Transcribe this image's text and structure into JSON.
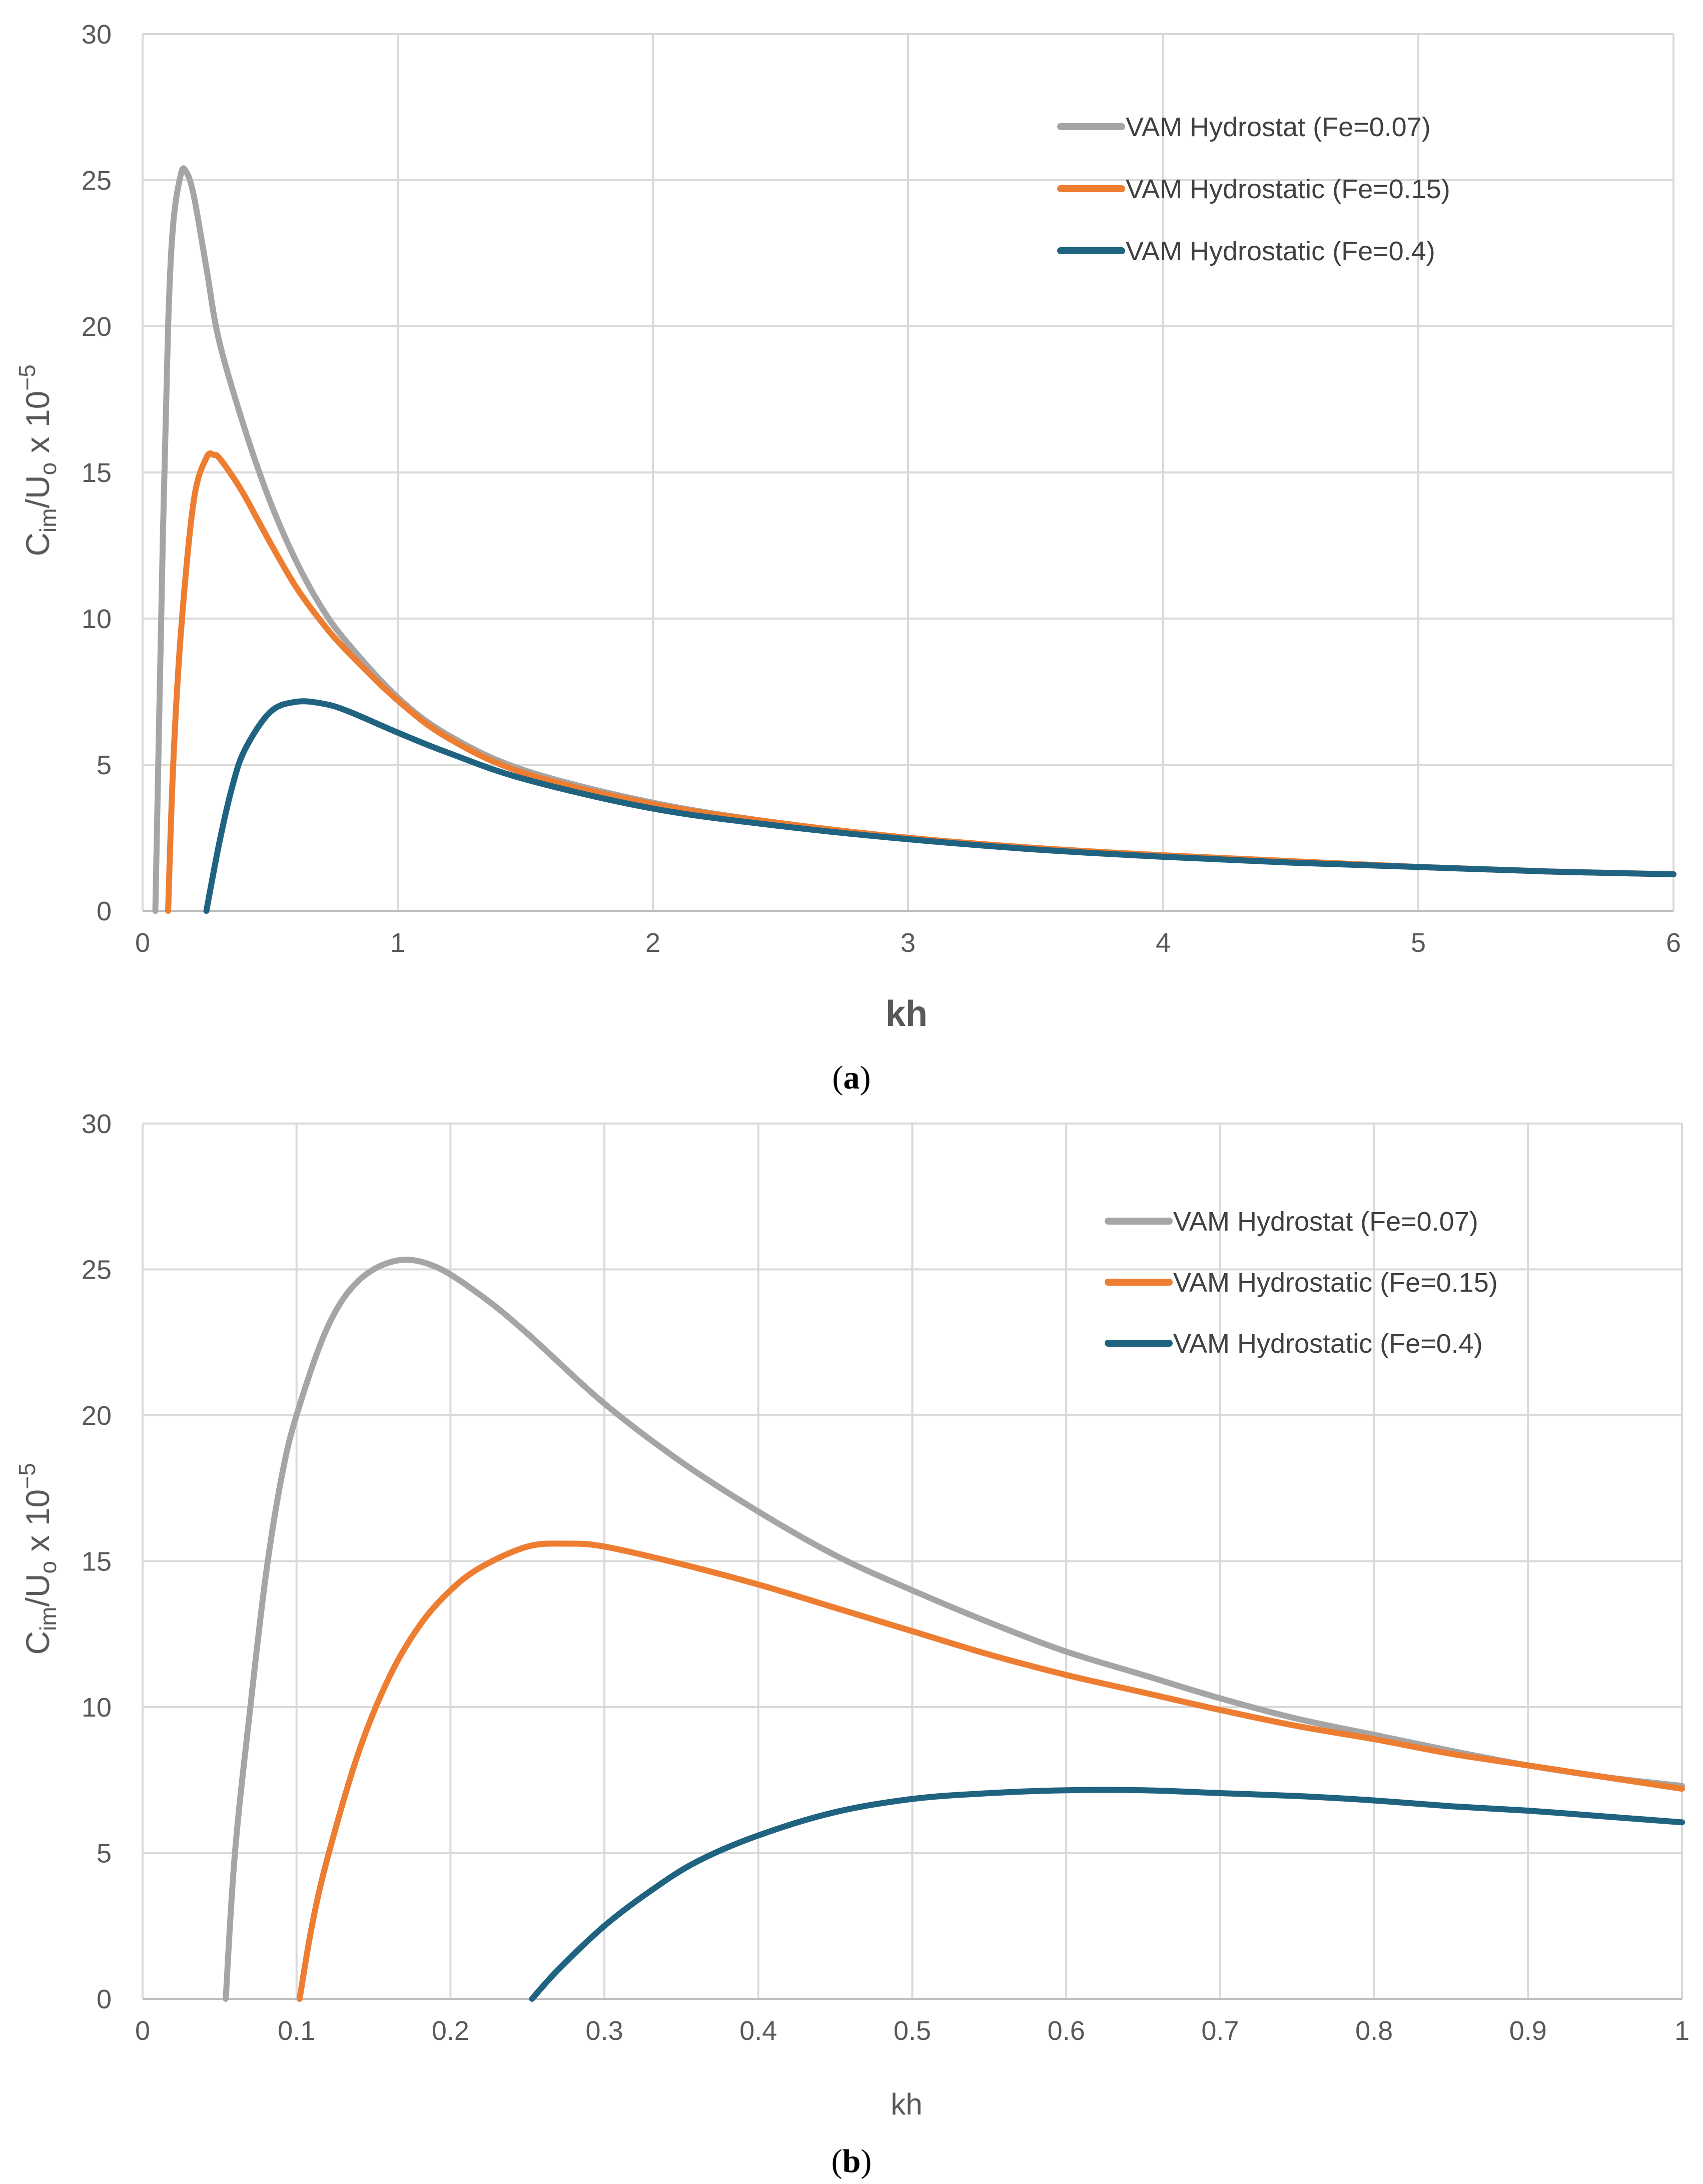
{
  "chart_data": [
    {
      "type": "line",
      "panel_label": "a",
      "xlabel": "kh",
      "ylabel": "C_im/U_o x 10^-5",
      "xlim": [
        0,
        6
      ],
      "ylim": [
        0,
        30
      ],
      "xticks": [
        0,
        1,
        2,
        3,
        4,
        5,
        6
      ],
      "yticks": [
        0,
        5,
        10,
        15,
        20,
        25,
        30
      ],
      "grid": true,
      "legend_position": "top-right",
      "series": [
        {
          "name": "VAM Hydrostat (Fe=0.07)",
          "color": "#a5a5a5",
          "x": [
            0.05,
            0.08,
            0.1,
            0.12,
            0.15,
            0.17,
            0.2,
            0.25,
            0.3,
            0.4,
            0.5,
            0.6,
            0.7,
            0.8,
            1.0,
            1.2,
            1.5,
            2.0,
            2.5,
            3.0,
            3.5,
            4.0,
            4.5,
            5.0,
            5.5,
            6.0
          ],
          "y": [
            0,
            13,
            20,
            23.5,
            25.2,
            25.3,
            24.5,
            22,
            19.5,
            16.5,
            14,
            12,
            10.4,
            9.2,
            7.3,
            6.0,
            4.8,
            3.7,
            3.0,
            2.5,
            2.15,
            1.9,
            1.7,
            1.5,
            1.35,
            1.25
          ]
        },
        {
          "name": "VAM Hydrostatic (Fe=0.15)",
          "color": "#ed7d31",
          "x": [
            0.1,
            0.12,
            0.15,
            0.2,
            0.25,
            0.28,
            0.3,
            0.35,
            0.4,
            0.5,
            0.6,
            0.7,
            0.8,
            1.0,
            1.2,
            1.5,
            2.0,
            2.5,
            3.0,
            3.5,
            4.0,
            4.5,
            5.0,
            5.5,
            6.0
          ],
          "y": [
            0,
            5,
            9.5,
            14,
            15.5,
            15.6,
            15.5,
            14.9,
            14.2,
            12.6,
            11.1,
            9.9,
            8.9,
            7.2,
            5.9,
            4.7,
            3.65,
            3.0,
            2.5,
            2.15,
            1.9,
            1.7,
            1.5,
            1.35,
            1.25
          ]
        },
        {
          "name": "VAM Hydrostatic (Fe=0.4)",
          "color": "#1f6381",
          "x": [
            0.25,
            0.3,
            0.35,
            0.4,
            0.5,
            0.6,
            0.7,
            0.8,
            1.0,
            1.2,
            1.5,
            2.0,
            2.5,
            3.0,
            3.5,
            4.0,
            4.5,
            5.0,
            5.5,
            6.0
          ],
          "y": [
            0,
            2.3,
            4.2,
            5.5,
            6.8,
            7.15,
            7.1,
            6.85,
            6.1,
            5.4,
            4.5,
            3.5,
            2.9,
            2.45,
            2.1,
            1.85,
            1.65,
            1.5,
            1.35,
            1.25
          ]
        }
      ]
    },
    {
      "type": "line",
      "panel_label": "b",
      "xlabel": "kh",
      "ylabel": "C_im/U_o x 10^-5",
      "xlim": [
        0,
        1
      ],
      "ylim": [
        0,
        30
      ],
      "xticks": [
        0,
        0.1,
        0.2,
        0.3,
        0.4,
        0.5,
        0.6,
        0.7,
        0.8,
        0.9,
        1
      ],
      "yticks": [
        0,
        5,
        10,
        15,
        20,
        25,
        30
      ],
      "grid": true,
      "legend_position": "top-right",
      "series": [
        {
          "name": "VAM Hydrostat (Fe=0.07)",
          "color": "#a5a5a5",
          "x": [
            0.054,
            0.06,
            0.07,
            0.08,
            0.09,
            0.1,
            0.12,
            0.14,
            0.165,
            0.19,
            0.22,
            0.25,
            0.3,
            0.35,
            0.4,
            0.45,
            0.5,
            0.55,
            0.6,
            0.65,
            0.7,
            0.75,
            0.8,
            0.85,
            0.9,
            0.95,
            1.0
          ],
          "y": [
            0,
            5,
            10,
            14.5,
            17.8,
            20,
            23,
            24.6,
            25.3,
            25.1,
            24.1,
            22.8,
            20.4,
            18.4,
            16.7,
            15.2,
            14,
            12.9,
            11.9,
            11.1,
            10.3,
            9.6,
            9.05,
            8.5,
            8.0,
            7.6,
            7.3
          ]
        },
        {
          "name": "VAM Hydrostatic (Fe=0.15)",
          "color": "#ed7d31",
          "x": [
            0.102,
            0.11,
            0.12,
            0.14,
            0.16,
            0.18,
            0.2,
            0.22,
            0.25,
            0.275,
            0.3,
            0.35,
            0.4,
            0.45,
            0.5,
            0.55,
            0.6,
            0.65,
            0.7,
            0.75,
            0.8,
            0.85,
            0.9,
            0.95,
            1.0
          ],
          "y": [
            0,
            2.5,
            4.8,
            8.4,
            11,
            12.8,
            14,
            14.8,
            15.5,
            15.6,
            15.5,
            14.9,
            14.2,
            13.4,
            12.6,
            11.8,
            11.1,
            10.5,
            9.9,
            9.35,
            8.9,
            8.4,
            8.0,
            7.6,
            7.2
          ]
        },
        {
          "name": "VAM Hydrostatic (Fe=0.4)",
          "color": "#1f6381",
          "x": [
            0.253,
            0.27,
            0.3,
            0.33,
            0.36,
            0.4,
            0.45,
            0.5,
            0.55,
            0.6,
            0.65,
            0.7,
            0.75,
            0.8,
            0.85,
            0.9,
            0.95,
            1.0
          ],
          "y": [
            0,
            1.0,
            2.5,
            3.7,
            4.7,
            5.6,
            6.4,
            6.85,
            7.05,
            7.15,
            7.15,
            7.05,
            6.95,
            6.8,
            6.6,
            6.45,
            6.25,
            6.05
          ]
        }
      ]
    }
  ]
}
